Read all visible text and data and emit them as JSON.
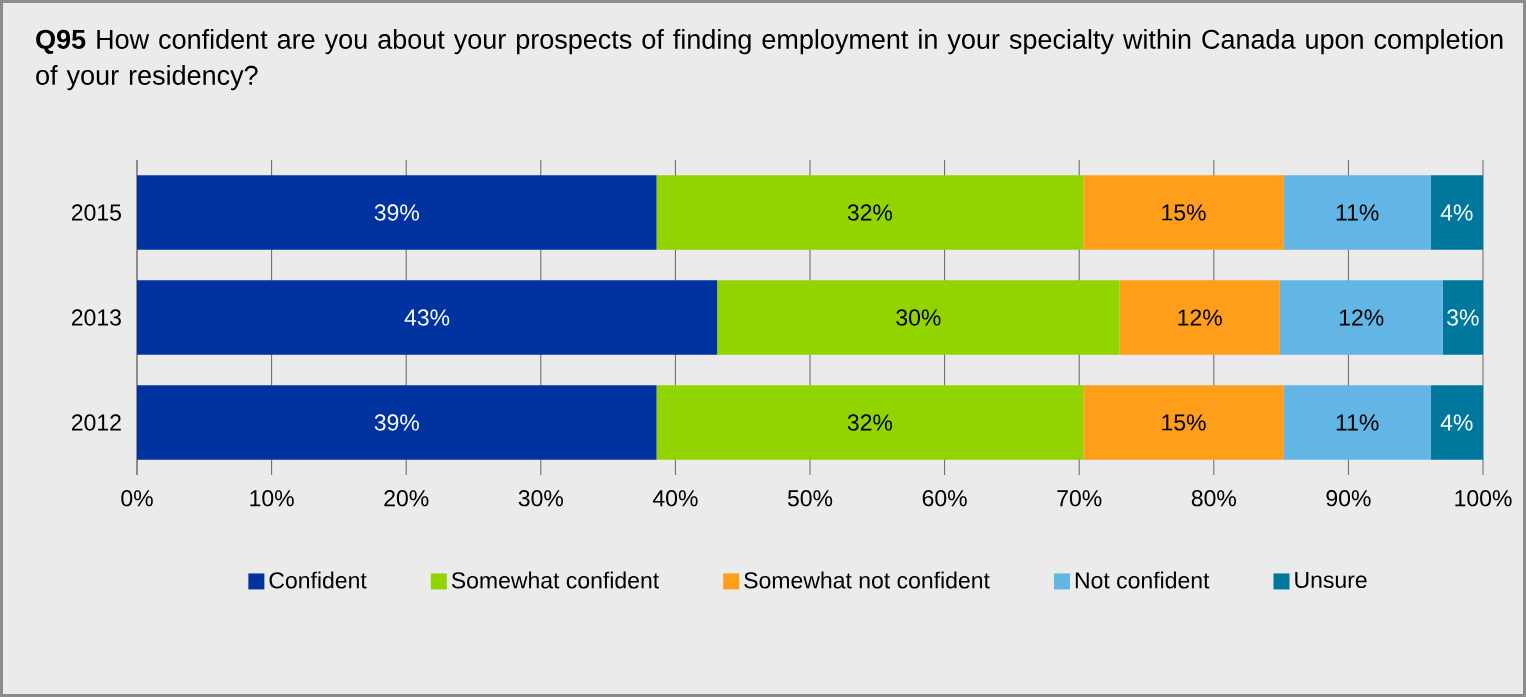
{
  "chart_data": {
    "type": "bar",
    "orientation": "horizontal",
    "stacked": true,
    "title": "**Q95** How confident are you about your prospects of finding employment in your specialty within Canada upon completion of your residency?",
    "categories": [
      "2015",
      "2013",
      "2012"
    ],
    "series": [
      {
        "name": "Confident",
        "color": "#0033a0",
        "values": [
          38.6,
          43.1,
          38.6
        ],
        "value_labels": [
          "39%",
          "43%",
          "39%"
        ]
      },
      {
        "name": "Somewhat confident",
        "color": "#92d400",
        "values": [
          31.7,
          29.9,
          31.7
        ],
        "value_labels": [
          "32%",
          "30%",
          "32%"
        ]
      },
      {
        "name": "Somewhat not confident",
        "color": "#ff9e1b",
        "values": [
          14.9,
          11.9,
          14.9
        ],
        "value_labels": [
          "15%",
          "12%",
          "15%"
        ]
      },
      {
        "name": "Not confident",
        "color": "#62b5e5",
        "values": [
          10.9,
          12.1,
          10.9
        ],
        "value_labels": [
          "11%",
          "12%",
          "11%"
        ]
      },
      {
        "name": "Unsure",
        "color": "#00789e",
        "values": [
          3.9,
          3.0,
          3.9
        ],
        "value_labels": [
          "4%",
          "3%",
          "4%"
        ]
      }
    ],
    "xlim": [
      0,
      100
    ],
    "xticks": [
      {
        "value": 0,
        "label": "0%"
      },
      {
        "value": 10,
        "label": "10%"
      },
      {
        "value": 20,
        "label": "20%"
      },
      {
        "value": 30,
        "label": "30%"
      },
      {
        "value": 40,
        "label": "40%"
      },
      {
        "value": 50,
        "label": "50%"
      },
      {
        "value": 60,
        "label": "60%"
      },
      {
        "value": 70,
        "label": "70%"
      },
      {
        "value": 80,
        "label": "80%"
      },
      {
        "value": 90,
        "label": "90%"
      },
      {
        "value": 100,
        "label": "100%"
      }
    ],
    "grid": "x",
    "legend": "bottom"
  }
}
